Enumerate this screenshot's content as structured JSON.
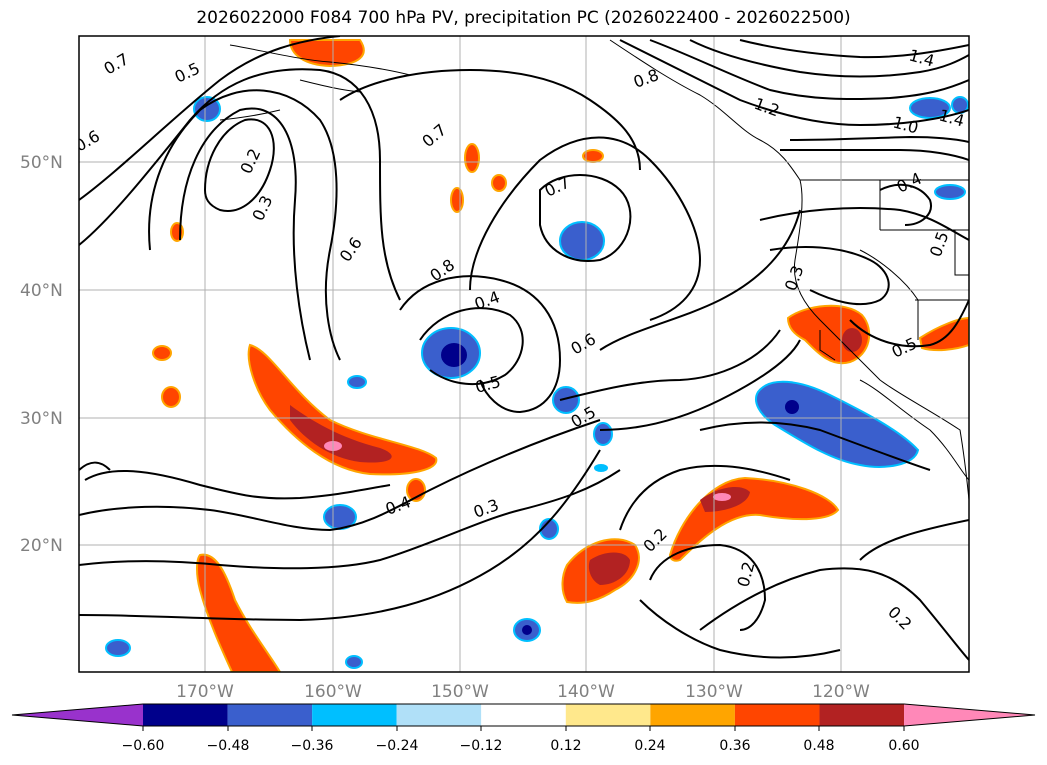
{
  "title": "2026022000 F084 700 hPa PV, precipitation PC (2026022400 - 2026022500)",
  "lat_labels": [
    "50°N",
    "40°N",
    "30°N",
    "20°N"
  ],
  "lon_labels": [
    "170°W",
    "160°W",
    "150°W",
    "140°W",
    "130°W",
    "120°W"
  ],
  "contour_labels": [
    "0.7",
    "0.5",
    "0.6",
    "0.2",
    "0.3",
    "0.7",
    "0.6",
    "0.8",
    "0.4",
    "0.5",
    "0.6",
    "0.5",
    "0.7",
    "0.8",
    "1.2",
    "1.4",
    "1.0",
    "1.4",
    "0.4",
    "0.5",
    "0.3",
    "0.5",
    "0.4",
    "0.3",
    "0.2",
    "0.2",
    "0.2"
  ],
  "colorbar": {
    "ticks": [
      "−0.60",
      "−0.48",
      "−0.36",
      "−0.24",
      "−0.12",
      "0.12",
      "0.24",
      "0.36",
      "0.48",
      "0.60"
    ],
    "colors": [
      "#9932cc",
      "#00008b",
      "#3a5fcd",
      "#00bfff",
      "#b0e0f8",
      "#ffffff",
      "#ffe88c",
      "#ffa500",
      "#ff4500",
      "#b22222",
      "#ff88b8"
    ]
  }
}
